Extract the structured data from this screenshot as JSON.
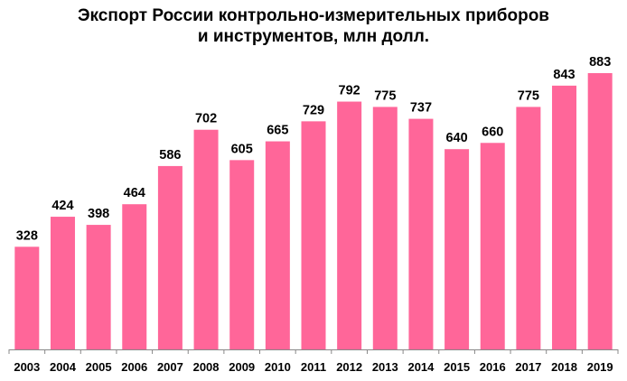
{
  "chart_data": {
    "type": "bar",
    "title_lines": [
      "Экспорт России контрольно-измерительных приборов",
      "и инструментов, млн долл."
    ],
    "xlabel": "",
    "ylabel": "",
    "categories": [
      "2003",
      "2004",
      "2005",
      "2006",
      "2007",
      "2008",
      "2009",
      "2010",
      "2011",
      "2012",
      "2013",
      "2014",
      "2015",
      "2016",
      "2017",
      "2018",
      "2019"
    ],
    "values": [
      328,
      424,
      398,
      464,
      586,
      702,
      605,
      665,
      729,
      792,
      775,
      737,
      640,
      660,
      775,
      843,
      883
    ],
    "data_labels": [
      "328",
      "424",
      "398",
      "464",
      "586",
      "702",
      "605",
      "665",
      "729",
      "792",
      "775",
      "737",
      "640",
      "660",
      "775",
      "843",
      "883"
    ],
    "ylim": [
      0,
      990
    ],
    "grid": false,
    "legend": "none",
    "bar_color": "#FF6699",
    "axis_color": "#888888"
  }
}
